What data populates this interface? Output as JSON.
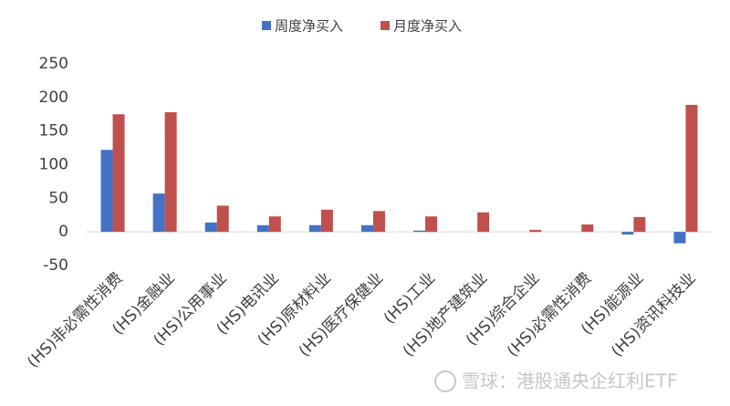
{
  "chart_data": {
    "type": "bar",
    "categories": [
      "(HS)非必需性消费",
      "(HS)金融业",
      "(HS)公用事业",
      "(HS)电讯业",
      "(HS)原材料业",
      "(HS)医疗保健业",
      "(HS)工业",
      "(HS)地产建筑业",
      "(HS)综合企业",
      "(HS)必需性消费",
      "(HS)能源业",
      "(HS)资讯科技业"
    ],
    "series": [
      {
        "name": "周度净买入",
        "color": "#4472c4",
        "values": [
          122,
          57,
          14,
          10,
          10,
          10,
          2,
          0,
          0,
          0,
          -4,
          -17
        ]
      },
      {
        "name": "月度净买入",
        "color": "#c0504d",
        "values": [
          175,
          178,
          39,
          23,
          33,
          31,
          23,
          29,
          3,
          11,
          22,
          189
        ]
      }
    ],
    "ylim": [
      -50,
      250
    ],
    "yticks": [
      -50,
      0,
      50,
      100,
      150,
      200,
      250
    ],
    "grid": false,
    "legend": "top"
  },
  "watermark": "雪球：港股通央企红利ETF"
}
